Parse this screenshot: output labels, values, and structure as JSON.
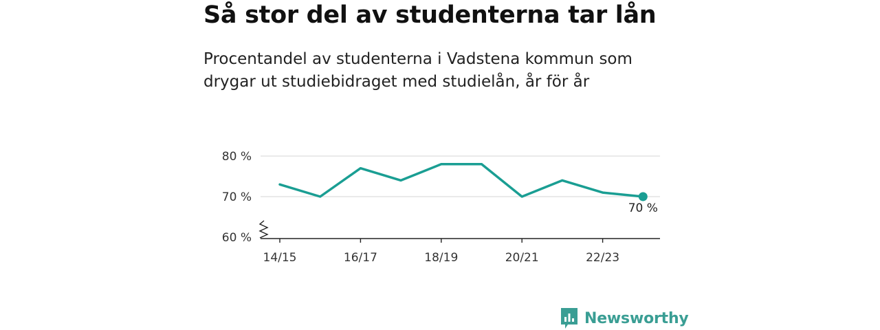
{
  "header": {
    "title": "Så stor del av studenterna tar lån",
    "subtitle": "Procentandel av studenterna i Vadstena kommun som drygar ut studiebidraget med studielån, år för år"
  },
  "brand": {
    "name": "Newsworthy",
    "icon": "newsworthy-logo-icon",
    "color": "#3a9e94"
  },
  "chart_data": {
    "type": "line",
    "x": [
      "14/15",
      "15/16",
      "16/17",
      "17/18",
      "18/19",
      "19/20",
      "20/21",
      "21/22",
      "22/23",
      "23/24"
    ],
    "x_tick_labels": [
      "14/15",
      "16/17",
      "18/19",
      "20/21",
      "22/23"
    ],
    "series": [
      {
        "values": [
          73,
          70,
          77,
          74,
          78,
          78,
          70,
          74,
          71,
          70
        ],
        "color": "#1a9e93"
      }
    ],
    "y_ticks": [
      60,
      70,
      80
    ],
    "y_tick_labels": [
      "60 %",
      "70 %",
      "80 %"
    ],
    "ylim": [
      60,
      80
    ],
    "axis_break": true,
    "grid": true,
    "end_label": "70 %"
  }
}
